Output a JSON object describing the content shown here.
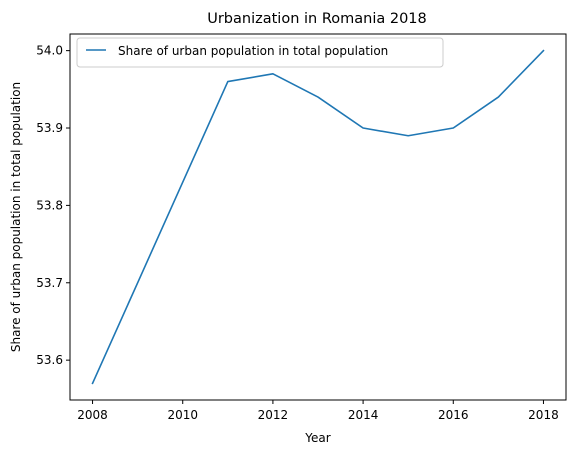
{
  "chart_data": {
    "type": "line",
    "title": "Urbanization in Romania 2018",
    "xlabel": "Year",
    "ylabel": "Share of urban population in total population",
    "x": [
      2008,
      2009,
      2010,
      2011,
      2012,
      2013,
      2014,
      2015,
      2016,
      2017,
      2018
    ],
    "series": [
      {
        "name": "Share of urban population in total population",
        "color": "#1f77b4",
        "values": [
          53.57,
          53.7,
          53.83,
          53.96,
          53.97,
          53.94,
          53.9,
          53.89,
          53.9,
          53.94,
          54.0
        ]
      }
    ],
    "xticks": [
      2008,
      2010,
      2012,
      2014,
      2016,
      2018
    ],
    "yticks": [
      "53.6",
      "53.7",
      "53.8",
      "53.9",
      "54.0"
    ],
    "xlim": [
      2007.5,
      2018.5
    ],
    "ylim": [
      53.5485,
      54.0215
    ],
    "grid": false,
    "legend": "top-left"
  }
}
